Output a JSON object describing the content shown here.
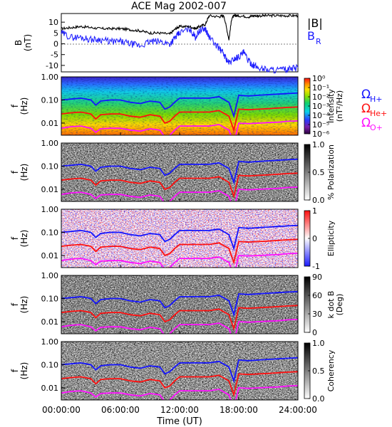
{
  "title": "ACE Mag 2002-007",
  "xlabel": "Time (UT)",
  "xticks": [
    "00:00:00",
    "06:00:00",
    "12:00:00",
    "18:00:00",
    "24:00:00"
  ],
  "colors": {
    "b_total": "#000000",
    "b_r": "#1a1aff",
    "h_plus": "#1414ff",
    "he_plus": "#ff1010",
    "o_plus": "#ff10ff"
  },
  "legend": {
    "b_total": "|B|",
    "b_r_main": "B",
    "b_r_sub": "R",
    "omega": "Ω",
    "h_sub": "H+",
    "he_sub": "He+",
    "o_sub": "O+"
  },
  "panel1": {
    "ylabel_1": "B",
    "ylabel_2": "(nT)",
    "yticks": [
      "10",
      "5",
      "0",
      "-5",
      "-10"
    ]
  },
  "freq_yticks": [
    "1.00",
    "0.10",
    "0.01"
  ],
  "freq_ylabel_1": "f",
  "freq_ylabel_2": "(Hz)",
  "panels": [
    {
      "colorbar_label_1": "Intensity",
      "colorbar_label_2": "(nT²/Hz)",
      "colorbar_ticks": [
        "10⁰",
        "10⁻¹",
        "10⁻²",
        "10⁻³",
        "10⁻⁴",
        "10⁻⁵",
        "10⁻⁶"
      ]
    },
    {
      "colorbar_label_1": "% Polarization",
      "colorbar_label_2": "",
      "colorbar_ticks": [
        "1.0",
        "0.5",
        "0.0"
      ]
    },
    {
      "colorbar_label_1": "Ellipticity",
      "colorbar_label_2": "",
      "colorbar_ticks": [
        "1",
        "0",
        "-1"
      ]
    },
    {
      "colorbar_label_1": "k dot B",
      "colorbar_label_2": "(Deg)",
      "colorbar_ticks": [
        "90",
        "60",
        "30",
        "0"
      ]
    },
    {
      "colorbar_label_1": "Coherency",
      "colorbar_label_2": "",
      "colorbar_ticks": [
        "1.0",
        "0.5",
        "0.0"
      ]
    }
  ],
  "chart_data": {
    "type": "line",
    "title": "ACE Mag 2002-007",
    "xlabel": "Time (UT)",
    "xlim_hours": [
      0,
      24
    ],
    "panel_b": {
      "ylim": [
        -13,
        14
      ],
      "series": [
        {
          "name": "|B|",
          "x": [
            0,
            1,
            2,
            3,
            4,
            5,
            6,
            7,
            8,
            9,
            10,
            11,
            11.6,
            12,
            13,
            13.6,
            14,
            14.6,
            15,
            16,
            16.5,
            17,
            17.3,
            17.6,
            18,
            19,
            19.5,
            20,
            21,
            22,
            23,
            24
          ],
          "y": [
            7,
            7.5,
            8,
            7.5,
            7,
            7,
            7,
            6.5,
            6,
            5,
            5,
            4.5,
            7,
            8,
            8,
            7,
            8,
            9,
            13,
            12.5,
            13,
            2,
            12,
            13,
            13,
            12.5,
            13,
            13,
            13,
            13,
            13,
            13
          ]
        },
        {
          "name": "B_R",
          "x": [
            0,
            1,
            2,
            3,
            4,
            5,
            6,
            7,
            8,
            9,
            10,
            11,
            11.6,
            12,
            13,
            13.6,
            14,
            14.6,
            15,
            16,
            16.5,
            17,
            17.5,
            18,
            18.5,
            19,
            19.5,
            20,
            21,
            22,
            23,
            24
          ],
          "y": [
            5,
            3,
            3,
            2,
            2,
            1,
            1,
            0,
            -1,
            1,
            1,
            0,
            3,
            5,
            7,
            3,
            6,
            7,
            3,
            -2,
            -5,
            -9,
            -7,
            -6,
            -4,
            -8,
            -10,
            -11,
            -12,
            -12,
            -12,
            -11
          ]
        }
      ]
    },
    "ion_cyclotron_frequencies_hz": {
      "x": [
        0,
        1,
        2,
        3,
        3.5,
        4,
        5,
        6,
        7,
        8,
        9,
        10,
        10.5,
        11,
        11.5,
        12,
        13,
        14,
        15,
        16,
        17,
        17.5,
        18,
        19,
        20,
        21,
        22,
        23,
        24
      ],
      "series": [
        {
          "name": "Ω H+",
          "values": [
            0.1,
            0.11,
            0.12,
            0.1,
            0.06,
            0.09,
            0.1,
            0.1,
            0.08,
            0.07,
            0.09,
            0.08,
            0.04,
            0.05,
            0.08,
            0.12,
            0.12,
            0.12,
            0.12,
            0.14,
            0.08,
            0.02,
            0.16,
            0.15,
            0.16,
            0.17,
            0.18,
            0.19,
            0.2
          ]
        },
        {
          "name": "Ω He+",
          "values": [
            0.025,
            0.028,
            0.03,
            0.025,
            0.015,
            0.023,
            0.025,
            0.025,
            0.02,
            0.018,
            0.023,
            0.02,
            0.01,
            0.012,
            0.02,
            0.03,
            0.03,
            0.03,
            0.03,
            0.035,
            0.02,
            0.005,
            0.04,
            0.038,
            0.04,
            0.042,
            0.045,
            0.048,
            0.05
          ]
        },
        {
          "name": "Ω O+",
          "values": [
            0.006,
            0.007,
            0.0075,
            0.006,
            0.004,
            0.0057,
            0.006,
            0.006,
            0.005,
            0.0045,
            0.0057,
            0.005,
            0.0025,
            0.003,
            0.005,
            0.0075,
            0.0075,
            0.0075,
            0.0075,
            0.0087,
            0.005,
            0.0013,
            0.01,
            0.0095,
            0.01,
            0.0105,
            0.011,
            0.012,
            0.0125
          ]
        }
      ]
    },
    "spectrogram_panels": [
      {
        "quantity": "Intensity",
        "units": "nT²/Hz",
        "scale": "log",
        "range": [
          1e-06,
          1
        ]
      },
      {
        "quantity": "% Polarization",
        "range": [
          0,
          1
        ]
      },
      {
        "quantity": "Ellipticity",
        "range": [
          -1,
          1
        ]
      },
      {
        "quantity": "k dot B",
        "units": "Deg",
        "range": [
          0,
          90
        ]
      },
      {
        "quantity": "Coherency",
        "range": [
          0,
          1
        ]
      }
    ],
    "frequency_axis": {
      "scale": "log",
      "range_hz": [
        0.003,
        1.0
      ]
    }
  }
}
